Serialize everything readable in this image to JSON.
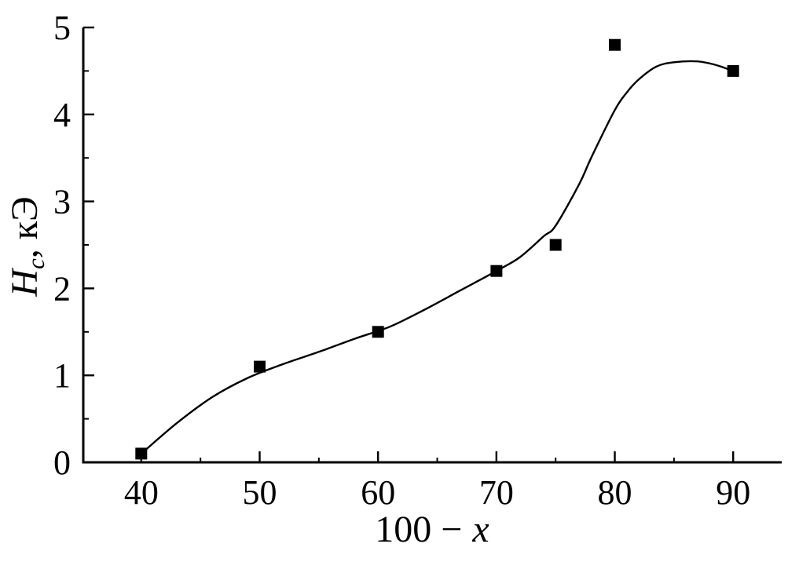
{
  "figure": {
    "background": "#ffffff",
    "ink_color": "#000000"
  },
  "chart_data": {
    "type": "scatter",
    "title": "",
    "xlabel": "100 − x",
    "ylabel": "Hc, кЭ",
    "xlabel_parts": {
      "prefix": "100 −",
      "variable": "x"
    },
    "ylabel_parts": {
      "variable": "H",
      "subscript": "c",
      "unit": ", кЭ"
    },
    "legend": "none",
    "grid": false,
    "xlim": [
      35.1,
      94.1
    ],
    "ylim": [
      0,
      5
    ],
    "x_major_ticks": [
      40,
      50,
      60,
      70,
      80,
      90
    ],
    "x_minor_ticks": [
      45,
      55,
      65,
      75,
      85
    ],
    "y_major_ticks": [
      0,
      1,
      2,
      3,
      4,
      5
    ],
    "y_minor_ticks": [
      0.5,
      1.5,
      2.5,
      3.5,
      4.5
    ],
    "series": [
      {
        "name": "Hc",
        "marker": "filled-square",
        "marker_color": "#000000",
        "marker_size_px": 15,
        "x": [
          40,
          50,
          60,
          70,
          75,
          80,
          90
        ],
        "y": [
          0.1,
          1.1,
          1.5,
          2.2,
          2.5,
          4.8,
          4.5
        ]
      }
    ],
    "trend_curve": [
      [
        40,
        0.1
      ],
      [
        43,
        0.45
      ],
      [
        46,
        0.75
      ],
      [
        49,
        0.97
      ],
      [
        52,
        1.13
      ],
      [
        55,
        1.27
      ],
      [
        58,
        1.42
      ],
      [
        61,
        1.56
      ],
      [
        64,
        1.76
      ],
      [
        67,
        1.98
      ],
      [
        70,
        2.2
      ],
      [
        72,
        2.36
      ],
      [
        74,
        2.6
      ],
      [
        75,
        2.72
      ],
      [
        77,
        3.2
      ],
      [
        78,
        3.5
      ],
      [
        80,
        4.05
      ],
      [
        81,
        4.25
      ],
      [
        82,
        4.4
      ],
      [
        83.5,
        4.55
      ],
      [
        85,
        4.6
      ],
      [
        87,
        4.61
      ],
      [
        88.5,
        4.57
      ],
      [
        90,
        4.5
      ]
    ],
    "curve_color": "#000000",
    "axis_color": "#000000"
  }
}
